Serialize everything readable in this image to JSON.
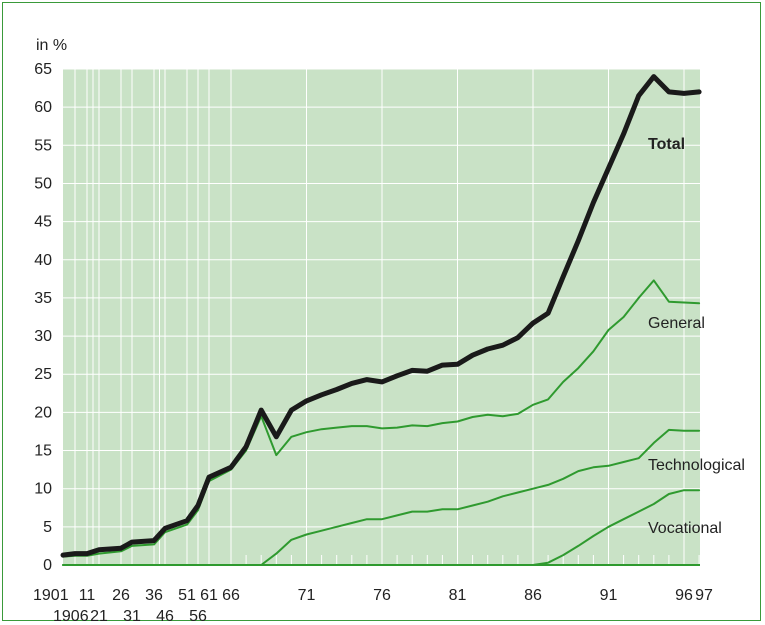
{
  "chart_data": {
    "type": "line",
    "ylabel": "in %",
    "ylim": [
      0,
      65
    ],
    "yticks": [
      0,
      5,
      10,
      15,
      20,
      25,
      30,
      35,
      40,
      45,
      50,
      55,
      60,
      65
    ],
    "xticks_upper": [
      "1901",
      "11",
      "26",
      "36",
      "51",
      "61",
      "66",
      "71",
      "76",
      "81",
      "86",
      "91",
      "96",
      "97"
    ],
    "xticks_lower": [
      "1906",
      "21",
      "31",
      "46",
      "56"
    ],
    "grid": true,
    "colors": {
      "background": "#c9e2c6",
      "total": "#1a1a1a",
      "components": "#2f9a2f",
      "grid": "#ffffff"
    },
    "series": [
      {
        "name": "Total",
        "x": [
          1901,
          1906,
          1911,
          1921,
          1926,
          1931,
          1936,
          1946,
          1951,
          1956,
          1961,
          1966,
          1967,
          1968,
          1969,
          1970,
          1971,
          1972,
          1973,
          1974,
          1975,
          1976,
          1977,
          1978,
          1979,
          1980,
          1981,
          1982,
          1983,
          1984,
          1985,
          1986,
          1987,
          1988,
          1989,
          1990,
          1991,
          1992,
          1993,
          1994,
          1995,
          1996,
          1997
        ],
        "values": [
          1.3,
          1.5,
          1.5,
          2.0,
          2.2,
          3.0,
          3.2,
          4.8,
          5.8,
          7.8,
          11.5,
          12.8,
          15.5,
          20.3,
          16.8,
          20.3,
          21.5,
          22.3,
          23.0,
          23.8,
          24.3,
          24.0,
          24.8,
          25.5,
          25.4,
          26.2,
          26.3,
          27.5,
          28.3,
          28.8,
          29.8,
          31.7,
          33.0,
          37.8,
          42.5,
          47.5,
          52.0,
          56.5,
          61.5,
          64.0,
          62.0,
          61.8,
          62.0
        ]
      },
      {
        "name": "General",
        "x": [
          1901,
          1906,
          1911,
          1921,
          1926,
          1931,
          1936,
          1946,
          1951,
          1956,
          1961,
          1966,
          1967,
          1968,
          1969,
          1970,
          1971,
          1972,
          1973,
          1974,
          1975,
          1976,
          1977,
          1978,
          1979,
          1980,
          1981,
          1982,
          1983,
          1984,
          1985,
          1986,
          1987,
          1988,
          1989,
          1990,
          1991,
          1992,
          1993,
          1994,
          1995,
          1996,
          1997
        ],
        "values": [
          1.1,
          1.2,
          1.2,
          1.5,
          1.8,
          2.5,
          2.7,
          4.3,
          5.3,
          7.2,
          11.0,
          12.5,
          15.0,
          19.5,
          14.4,
          16.8,
          17.4,
          17.8,
          18.0,
          18.2,
          18.2,
          17.9,
          18.0,
          18.3,
          18.2,
          18.6,
          18.8,
          19.4,
          19.7,
          19.5,
          19.8,
          21.0,
          21.7,
          24.0,
          25.8,
          28.0,
          30.8,
          32.5,
          35.0,
          37.3,
          34.5,
          34.4,
          34.3
        ]
      },
      {
        "name": "Technological",
        "x": [
          1901,
          1906,
          1911,
          1921,
          1926,
          1931,
          1936,
          1946,
          1951,
          1956,
          1961,
          1966,
          1967,
          1968,
          1969,
          1970,
          1971,
          1972,
          1973,
          1974,
          1975,
          1976,
          1977,
          1978,
          1979,
          1980,
          1981,
          1982,
          1983,
          1984,
          1985,
          1986,
          1987,
          1988,
          1989,
          1990,
          1991,
          1992,
          1993,
          1994,
          1995,
          1996,
          1997
        ],
        "values": [
          0,
          0,
          0,
          0,
          0,
          0,
          0,
          0,
          0,
          0,
          0,
          0,
          0,
          0,
          1.5,
          3.3,
          4.0,
          4.5,
          5.0,
          5.5,
          6.0,
          6.0,
          6.5,
          7.0,
          7.0,
          7.3,
          7.3,
          7.8,
          8.3,
          9.0,
          9.5,
          10.0,
          10.5,
          11.3,
          12.3,
          12.8,
          13.0,
          13.5,
          14.0,
          16.0,
          17.7,
          17.6,
          17.6
        ]
      },
      {
        "name": "Vocational",
        "x": [
          1901,
          1906,
          1911,
          1921,
          1926,
          1931,
          1936,
          1946,
          1951,
          1956,
          1961,
          1966,
          1967,
          1968,
          1969,
          1970,
          1971,
          1972,
          1973,
          1974,
          1975,
          1976,
          1977,
          1978,
          1979,
          1980,
          1981,
          1982,
          1983,
          1984,
          1985,
          1986,
          1987,
          1988,
          1989,
          1990,
          1991,
          1992,
          1993,
          1994,
          1995,
          1996,
          1997
        ],
        "values": [
          0,
          0,
          0,
          0,
          0,
          0,
          0,
          0,
          0,
          0,
          0,
          0,
          0,
          0,
          0,
          0,
          0,
          0,
          0,
          0,
          0,
          0,
          0,
          0,
          0,
          0,
          0,
          0,
          0,
          0,
          0,
          0,
          0.3,
          1.3,
          2.5,
          3.8,
          5.0,
          6.0,
          7.0,
          8.0,
          9.3,
          9.8,
          9.8
        ]
      }
    ]
  }
}
